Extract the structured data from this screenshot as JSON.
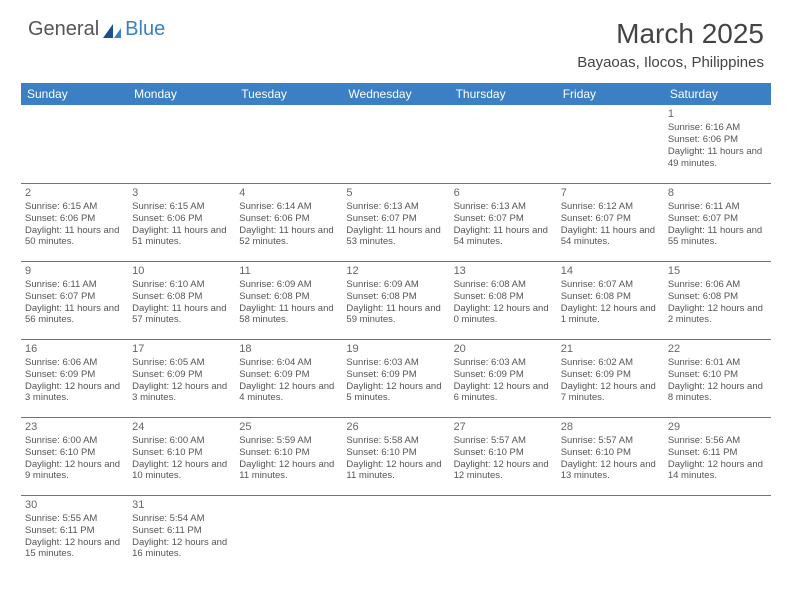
{
  "header": {
    "logo_general": "General",
    "logo_blue": "Blue",
    "title": "March 2025",
    "location": "Bayaoas, Ilocos, Philippines"
  },
  "colors": {
    "header_bg": "#3b7fc4",
    "header_text": "#ffffff",
    "border": "#3b7fc4",
    "body_text": "#555555",
    "title_color": "#444444",
    "title_fontsize": 28
  },
  "weekdays": [
    "Sunday",
    "Monday",
    "Tuesday",
    "Wednesday",
    "Thursday",
    "Friday",
    "Saturday"
  ],
  "weeks": [
    [
      null,
      null,
      null,
      null,
      null,
      null,
      {
        "n": "1",
        "sr": "Sunrise: 6:16 AM",
        "ss": "Sunset: 6:06 PM",
        "dl": "Daylight: 11 hours and 49 minutes."
      }
    ],
    [
      {
        "n": "2",
        "sr": "Sunrise: 6:15 AM",
        "ss": "Sunset: 6:06 PM",
        "dl": "Daylight: 11 hours and 50 minutes."
      },
      {
        "n": "3",
        "sr": "Sunrise: 6:15 AM",
        "ss": "Sunset: 6:06 PM",
        "dl": "Daylight: 11 hours and 51 minutes."
      },
      {
        "n": "4",
        "sr": "Sunrise: 6:14 AM",
        "ss": "Sunset: 6:06 PM",
        "dl": "Daylight: 11 hours and 52 minutes."
      },
      {
        "n": "5",
        "sr": "Sunrise: 6:13 AM",
        "ss": "Sunset: 6:07 PM",
        "dl": "Daylight: 11 hours and 53 minutes."
      },
      {
        "n": "6",
        "sr": "Sunrise: 6:13 AM",
        "ss": "Sunset: 6:07 PM",
        "dl": "Daylight: 11 hours and 54 minutes."
      },
      {
        "n": "7",
        "sr": "Sunrise: 6:12 AM",
        "ss": "Sunset: 6:07 PM",
        "dl": "Daylight: 11 hours and 54 minutes."
      },
      {
        "n": "8",
        "sr": "Sunrise: 6:11 AM",
        "ss": "Sunset: 6:07 PM",
        "dl": "Daylight: 11 hours and 55 minutes."
      }
    ],
    [
      {
        "n": "9",
        "sr": "Sunrise: 6:11 AM",
        "ss": "Sunset: 6:07 PM",
        "dl": "Daylight: 11 hours and 56 minutes."
      },
      {
        "n": "10",
        "sr": "Sunrise: 6:10 AM",
        "ss": "Sunset: 6:08 PM",
        "dl": "Daylight: 11 hours and 57 minutes."
      },
      {
        "n": "11",
        "sr": "Sunrise: 6:09 AM",
        "ss": "Sunset: 6:08 PM",
        "dl": "Daylight: 11 hours and 58 minutes."
      },
      {
        "n": "12",
        "sr": "Sunrise: 6:09 AM",
        "ss": "Sunset: 6:08 PM",
        "dl": "Daylight: 11 hours and 59 minutes."
      },
      {
        "n": "13",
        "sr": "Sunrise: 6:08 AM",
        "ss": "Sunset: 6:08 PM",
        "dl": "Daylight: 12 hours and 0 minutes."
      },
      {
        "n": "14",
        "sr": "Sunrise: 6:07 AM",
        "ss": "Sunset: 6:08 PM",
        "dl": "Daylight: 12 hours and 1 minute."
      },
      {
        "n": "15",
        "sr": "Sunrise: 6:06 AM",
        "ss": "Sunset: 6:08 PM",
        "dl": "Daylight: 12 hours and 2 minutes."
      }
    ],
    [
      {
        "n": "16",
        "sr": "Sunrise: 6:06 AM",
        "ss": "Sunset: 6:09 PM",
        "dl": "Daylight: 12 hours and 3 minutes."
      },
      {
        "n": "17",
        "sr": "Sunrise: 6:05 AM",
        "ss": "Sunset: 6:09 PM",
        "dl": "Daylight: 12 hours and 3 minutes."
      },
      {
        "n": "18",
        "sr": "Sunrise: 6:04 AM",
        "ss": "Sunset: 6:09 PM",
        "dl": "Daylight: 12 hours and 4 minutes."
      },
      {
        "n": "19",
        "sr": "Sunrise: 6:03 AM",
        "ss": "Sunset: 6:09 PM",
        "dl": "Daylight: 12 hours and 5 minutes."
      },
      {
        "n": "20",
        "sr": "Sunrise: 6:03 AM",
        "ss": "Sunset: 6:09 PM",
        "dl": "Daylight: 12 hours and 6 minutes."
      },
      {
        "n": "21",
        "sr": "Sunrise: 6:02 AM",
        "ss": "Sunset: 6:09 PM",
        "dl": "Daylight: 12 hours and 7 minutes."
      },
      {
        "n": "22",
        "sr": "Sunrise: 6:01 AM",
        "ss": "Sunset: 6:10 PM",
        "dl": "Daylight: 12 hours and 8 minutes."
      }
    ],
    [
      {
        "n": "23",
        "sr": "Sunrise: 6:00 AM",
        "ss": "Sunset: 6:10 PM",
        "dl": "Daylight: 12 hours and 9 minutes."
      },
      {
        "n": "24",
        "sr": "Sunrise: 6:00 AM",
        "ss": "Sunset: 6:10 PM",
        "dl": "Daylight: 12 hours and 10 minutes."
      },
      {
        "n": "25",
        "sr": "Sunrise: 5:59 AM",
        "ss": "Sunset: 6:10 PM",
        "dl": "Daylight: 12 hours and 11 minutes."
      },
      {
        "n": "26",
        "sr": "Sunrise: 5:58 AM",
        "ss": "Sunset: 6:10 PM",
        "dl": "Daylight: 12 hours and 11 minutes."
      },
      {
        "n": "27",
        "sr": "Sunrise: 5:57 AM",
        "ss": "Sunset: 6:10 PM",
        "dl": "Daylight: 12 hours and 12 minutes."
      },
      {
        "n": "28",
        "sr": "Sunrise: 5:57 AM",
        "ss": "Sunset: 6:10 PM",
        "dl": "Daylight: 12 hours and 13 minutes."
      },
      {
        "n": "29",
        "sr": "Sunrise: 5:56 AM",
        "ss": "Sunset: 6:11 PM",
        "dl": "Daylight: 12 hours and 14 minutes."
      }
    ],
    [
      {
        "n": "30",
        "sr": "Sunrise: 5:55 AM",
        "ss": "Sunset: 6:11 PM",
        "dl": "Daylight: 12 hours and 15 minutes."
      },
      {
        "n": "31",
        "sr": "Sunrise: 5:54 AM",
        "ss": "Sunset: 6:11 PM",
        "dl": "Daylight: 12 hours and 16 minutes."
      },
      null,
      null,
      null,
      null,
      null
    ]
  ]
}
